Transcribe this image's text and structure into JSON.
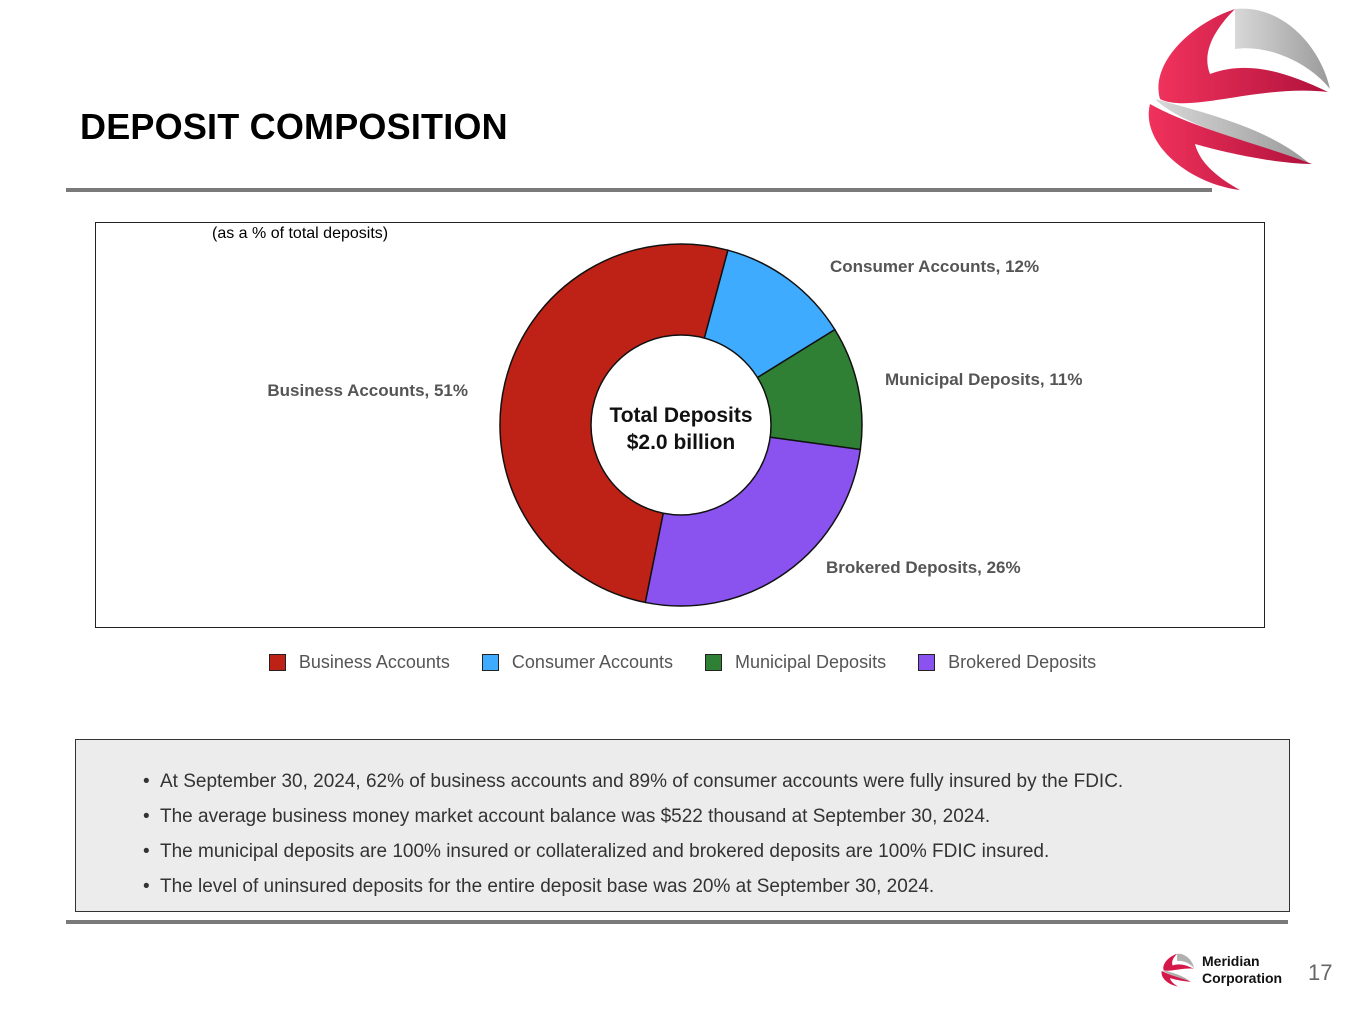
{
  "slide": {
    "title": "DEPOSIT COMPOSITION",
    "page_number": "17",
    "brand_line1": "Meridian",
    "brand_line2": "Corporation"
  },
  "chart_data": {
    "type": "pie",
    "subtitle": "(as a % of total deposits)",
    "center_label_line1": "Total Deposits",
    "center_label_line2": "$2.0 billion",
    "slices": [
      {
        "name": "Business Accounts",
        "value": 51,
        "label": "Business Accounts, 51%",
        "color": "#be2216"
      },
      {
        "name": "Consumer Accounts",
        "value": 12,
        "label": "Consumer Accounts, 12%",
        "color": "#3fabff"
      },
      {
        "name": "Municipal Deposits",
        "value": 11,
        "label": "Municipal Deposits, 11%",
        "color": "#2f8034"
      },
      {
        "name": "Brokered Deposits",
        "value": 26,
        "label": "Brokered Deposits, 26%",
        "color": "#8a53ef"
      }
    ],
    "legend_position": "bottom"
  },
  "notes": [
    "At September 30, 2024, 62% of business accounts and 89% of consumer accounts were fully insured by the FDIC.",
    "The average business money market account balance was $522 thousand at September 30, 2024.",
    "The municipal deposits are 100% insured or collateralized and brokered deposits are 100% FDIC insured.",
    "The level of uninsured deposits for the entire deposit base was 20% at September 30, 2024."
  ]
}
